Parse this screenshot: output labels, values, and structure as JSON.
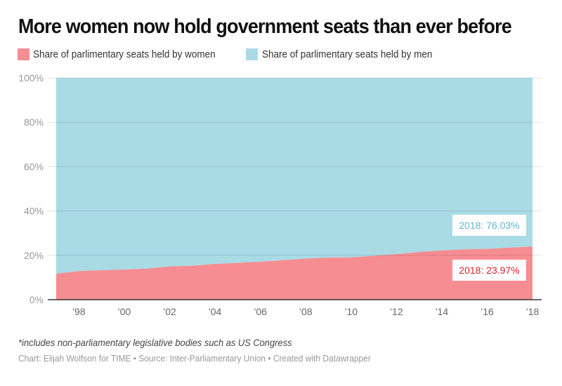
{
  "title": "More women now hold government seats than ever before",
  "legend": [
    {
      "label": "Share of parlimentary seats held by women",
      "color": "#f68d92"
    },
    {
      "label": "Share of parlimentary seats held by men",
      "color": "#a9dbe5"
    }
  ],
  "annotations": {
    "men": {
      "text": "2018: 76.03%",
      "color": "#5fb6cc"
    },
    "women": {
      "text": "2018: 23.97%",
      "color": "#e0202c"
    }
  },
  "notes": "*includes non-parliamentary legislative bodies such as US Congress",
  "byline": "Chart: Elijah Wolfson for TIME • Source: Inter-Parliamentary Union • Created with Datawrapper",
  "chart_data": {
    "type": "area",
    "stacked": true,
    "title": "More women now hold government seats than ever before",
    "xlabel": "",
    "ylabel": "",
    "x": [
      1997,
      1998,
      1999,
      2000,
      2001,
      2002,
      2003,
      2004,
      2005,
      2006,
      2007,
      2008,
      2009,
      2010,
      2011,
      2012,
      2013,
      2014,
      2015,
      2016,
      2017,
      2018
    ],
    "series": [
      {
        "name": "Share of parlimentary seats held by women",
        "color": "#f68d92",
        "values": [
          11.7,
          12.9,
          13.3,
          13.6,
          14.0,
          15.0,
          15.3,
          16.1,
          16.6,
          17.1,
          17.8,
          18.5,
          19.0,
          19.1,
          19.8,
          20.5,
          21.5,
          22.2,
          22.7,
          22.9,
          23.5,
          23.97
        ]
      },
      {
        "name": "Share of parlimentary seats held by men",
        "color": "#a9dbe5",
        "values": [
          88.3,
          87.1,
          86.7,
          86.4,
          86.0,
          85.0,
          84.7,
          83.9,
          83.4,
          82.9,
          82.2,
          81.5,
          81.0,
          80.9,
          80.2,
          79.5,
          78.5,
          77.8,
          77.3,
          77.1,
          76.5,
          76.03
        ]
      }
    ],
    "xlim": [
      1997,
      2018
    ],
    "ylim": [
      0,
      100
    ],
    "yticks": [
      0,
      20,
      40,
      60,
      80,
      100
    ],
    "ytick_labels": [
      "0%",
      "20%",
      "40%",
      "60%",
      "80%",
      "100%"
    ],
    "xticks": [
      1998,
      2000,
      2002,
      2004,
      2006,
      2008,
      2010,
      2012,
      2014,
      2016,
      2018
    ],
    "xtick_labels": [
      "’98",
      "’00",
      "’02",
      "’04",
      "’06",
      "’08",
      "’10",
      "’12",
      "’14",
      "’16",
      "’18"
    ],
    "grid": true,
    "legend_position": "top-left",
    "annotations": [
      {
        "text": "2018: 76.03%",
        "series": "men",
        "x": 2018
      },
      {
        "text": "2018: 23.97%",
        "series": "women",
        "x": 2018
      }
    ]
  }
}
